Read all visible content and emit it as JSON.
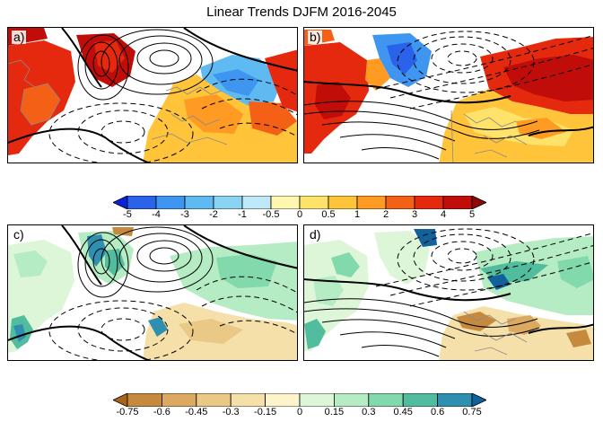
{
  "title": "Linear Trends DJFM 2016-2045",
  "panels": [
    {
      "label": "a)",
      "field": "temperature"
    },
    {
      "label": "b)",
      "field": "temperature"
    },
    {
      "label": "c)",
      "field": "precipitation"
    },
    {
      "label": "d)",
      "field": "precipitation"
    }
  ],
  "colorbars": [
    {
      "ticks": [
        "-5",
        "-4",
        "-3",
        "-2",
        "-1",
        "-0.5",
        "0",
        "0.5",
        "1",
        "2",
        "3",
        "4",
        "5"
      ],
      "colors": [
        "#0a22dc",
        "#2a62ea",
        "#3e96f0",
        "#5fbaf2",
        "#8ad3f5",
        "#bfe8f9",
        "#fff7b0",
        "#ffe26a",
        "#ffc43a",
        "#ff9a22",
        "#f46016",
        "#e4290e",
        "#c10d0a",
        "#8e0808"
      ]
    },
    {
      "ticks": [
        "-0.75",
        "-0.6",
        "-0.45",
        "-0.3",
        "-0.15",
        "0",
        "0.15",
        "0.3",
        "0.45",
        "0.6",
        "0.75"
      ],
      "colors": [
        "#a7651a",
        "#c58a3e",
        "#dca960",
        "#eac986",
        "#f4e0a8",
        "#fdf4cc",
        "#ddf6d8",
        "#b6ecc4",
        "#82d9ac",
        "#52bc9e",
        "#2f8fb0",
        "#11629a"
      ]
    }
  ]
}
